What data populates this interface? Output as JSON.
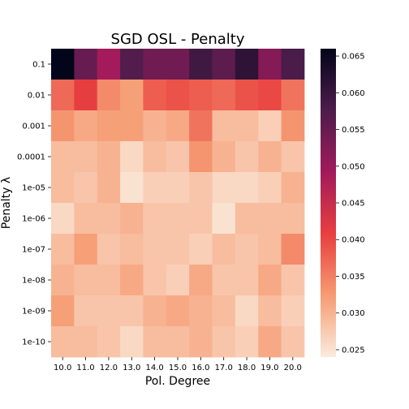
{
  "chart_data": {
    "type": "heatmap",
    "title": "SGD OSL - Penalty",
    "xlabel": "Pol. Degree",
    "ylabel": "Penalty λ",
    "x_categories": [
      "10.0",
      "11.0",
      "12.0",
      "13.0",
      "14.0",
      "15.0",
      "16.0",
      "17.0",
      "18.0",
      "19.0",
      "20.0"
    ],
    "y_categories": [
      "0.1",
      "0.01",
      "0.001",
      "0.0001",
      "1e-05",
      "1e-06",
      "1e-07",
      "1e-08",
      "1e-09",
      "1e-10"
    ],
    "values": [
      [
        0.066,
        0.055,
        0.049,
        0.057,
        0.054,
        0.054,
        0.059,
        0.056,
        0.061,
        0.052,
        0.058
      ],
      [
        0.037,
        0.041,
        0.034,
        0.032,
        0.038,
        0.039,
        0.038,
        0.037,
        0.039,
        0.04,
        0.036
      ],
      [
        0.033,
        0.031,
        0.032,
        0.032,
        0.03,
        0.031,
        0.036,
        0.029,
        0.029,
        0.027,
        0.033
      ],
      [
        0.029,
        0.029,
        0.03,
        0.026,
        0.029,
        0.028,
        0.033,
        0.03,
        0.028,
        0.03,
        0.028
      ],
      [
        0.029,
        0.028,
        0.03,
        0.025,
        0.027,
        0.027,
        0.028,
        0.026,
        0.026,
        0.027,
        0.03
      ],
      [
        0.026,
        0.029,
        0.029,
        0.03,
        0.028,
        0.028,
        0.028,
        0.025,
        0.029,
        0.029,
        0.029
      ],
      [
        0.029,
        0.032,
        0.028,
        0.029,
        0.028,
        0.028,
        0.027,
        0.029,
        0.028,
        0.029,
        0.034
      ],
      [
        0.03,
        0.029,
        0.029,
        0.031,
        0.028,
        0.027,
        0.031,
        0.028,
        0.028,
        0.031,
        0.028
      ],
      [
        0.032,
        0.028,
        0.028,
        0.028,
        0.03,
        0.031,
        0.03,
        0.029,
        0.026,
        0.029,
        0.027
      ],
      [
        0.029,
        0.029,
        0.028,
        0.026,
        0.029,
        0.029,
        0.03,
        0.028,
        0.027,
        0.031,
        0.028
      ]
    ],
    "vmin": 0.024,
    "vmax": 0.066,
    "colorbar_ticks": [
      "0.025",
      "0.030",
      "0.035",
      "0.040",
      "0.045",
      "0.050",
      "0.055",
      "0.060",
      "0.065"
    ],
    "colormap": "rocket",
    "colormap_stops": [
      "#03051a",
      "#4c1d4b",
      "#a11a5b",
      "#e83f3f",
      "#f69c73",
      "#faebdd"
    ],
    "grid": false,
    "legend": "colorbar-right"
  }
}
